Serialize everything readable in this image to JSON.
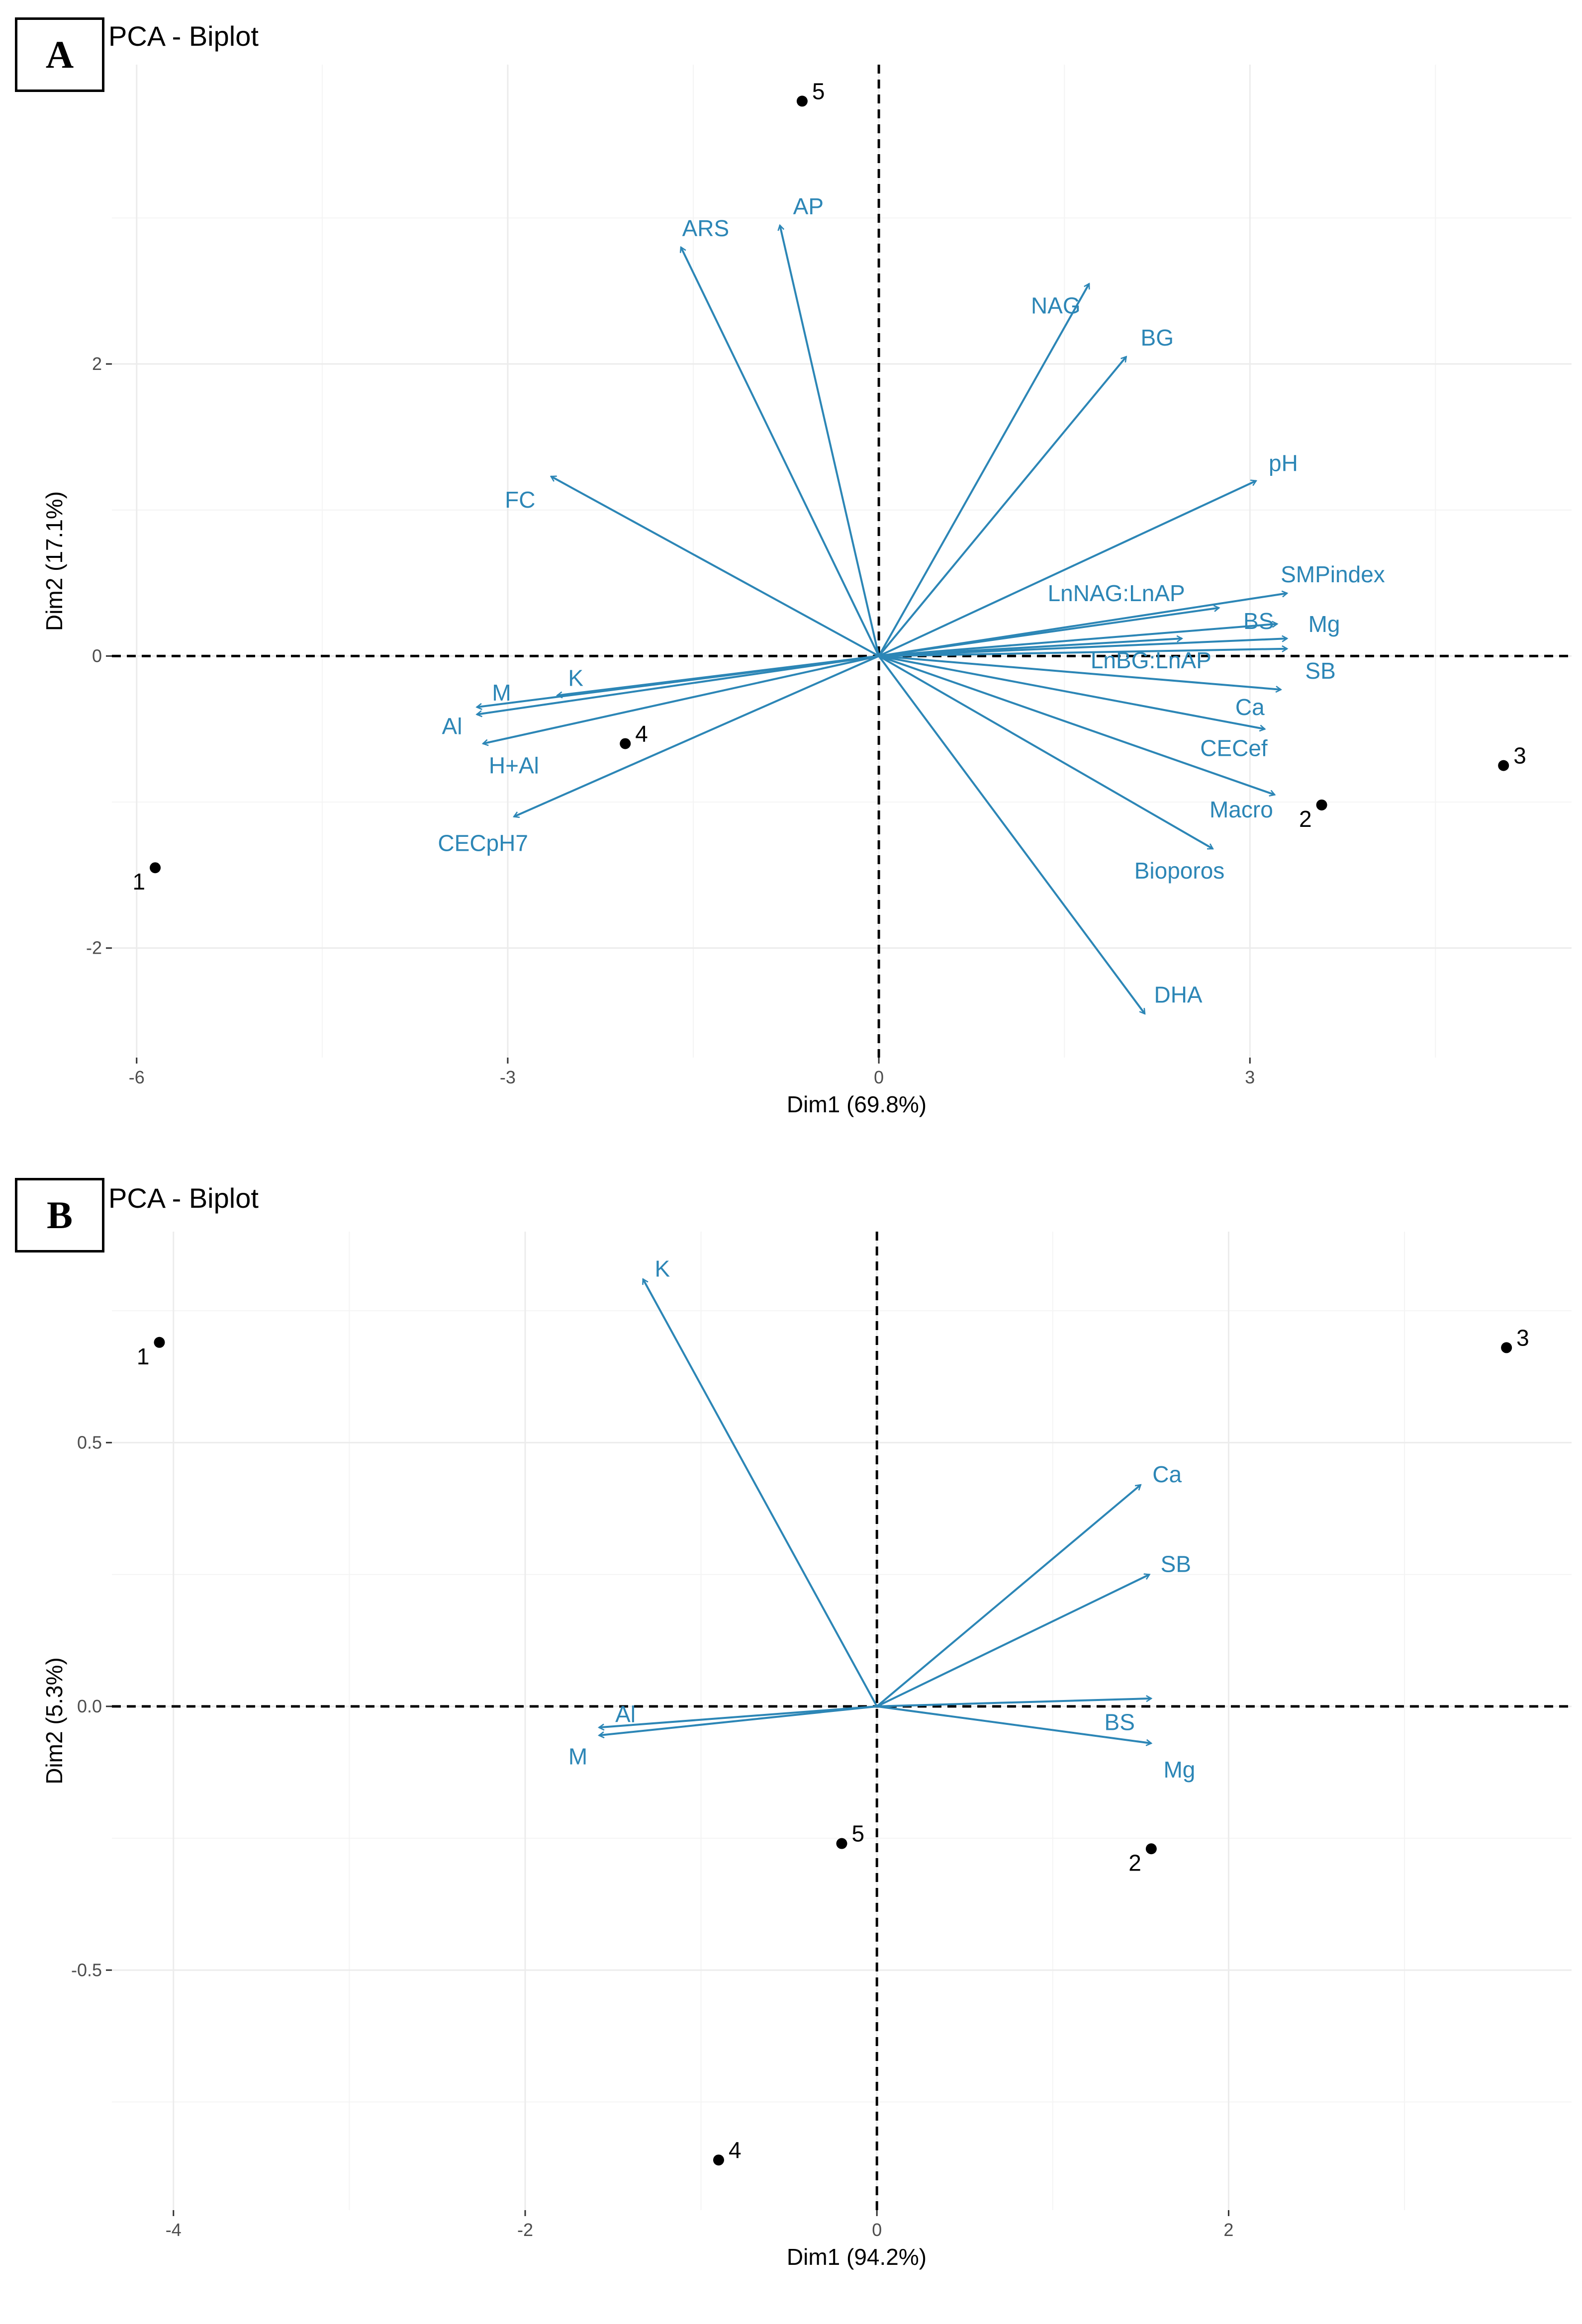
{
  "colors": {
    "arrow": "#2C86B6",
    "grid": "#ECECEC",
    "text": "#000000",
    "axis_text": "#4D4D4D"
  },
  "chart_data": [
    {
      "type": "scatter",
      "panel_label": "A",
      "title": "PCA - Biplot",
      "xlabel": "Dim1 (69.8%)",
      "ylabel": "Dim2 (17.1%)",
      "xlim": [
        -6.2,
        5.6
      ],
      "ylim": [
        -2.75,
        4.05
      ],
      "x_ticks": [
        -6,
        -3,
        0,
        3
      ],
      "x_tick_labels": [
        "-6",
        "-3",
        "0",
        "3"
      ],
      "y_ticks": [
        -2,
        0,
        2
      ],
      "y_tick_labels": [
        "-2",
        "0",
        "2"
      ],
      "minor_x": [
        -4.5,
        -1.5,
        1.5,
        4.5
      ],
      "minor_y": [
        -1,
        1,
        3
      ],
      "points": [
        {
          "label": "1",
          "x": -5.85,
          "y": -1.45,
          "pos": "bl"
        },
        {
          "label": "2",
          "x": 3.58,
          "y": -1.02,
          "pos": "bl"
        },
        {
          "label": "3",
          "x": 5.05,
          "y": -0.75,
          "pos": "tr"
        },
        {
          "label": "4",
          "x": -2.05,
          "y": -0.6,
          "pos": "tr"
        },
        {
          "label": "5",
          "x": -0.62,
          "y": 3.8,
          "pos": "tr"
        }
      ],
      "variables": [
        {
          "name": "ARS",
          "x": -1.6,
          "y": 2.8,
          "lx": -1.4,
          "ly": 2.93
        },
        {
          "name": "AP",
          "x": -0.8,
          "y": 2.95,
          "lx": -0.57,
          "ly": 3.08
        },
        {
          "name": "NAG",
          "x": 1.7,
          "y": 2.55,
          "lx": 1.43,
          "ly": 2.4
        },
        {
          "name": "BG",
          "x": 2.0,
          "y": 2.05,
          "lx": 2.25,
          "ly": 2.18
        },
        {
          "name": "pH",
          "x": 3.05,
          "y": 1.2,
          "lx": 3.27,
          "ly": 1.32
        },
        {
          "name": "FC",
          "x": -2.65,
          "y": 1.23,
          "lx": -2.9,
          "ly": 1.07
        },
        {
          "name": "SMPindex",
          "x": 3.3,
          "y": 0.43,
          "lx": 3.67,
          "ly": 0.56
        },
        {
          "name": "LnNAG:LnAP",
          "x": 2.75,
          "y": 0.33,
          "lx": 1.92,
          "ly": 0.43
        },
        {
          "name": "BS",
          "x": 3.22,
          "y": 0.22,
          "lx": 3.07,
          "ly": 0.24
        },
        {
          "name": "Mg",
          "x": 3.3,
          "y": 0.12,
          "lx": 3.6,
          "ly": 0.22
        },
        {
          "name": "LnBG:LnAP",
          "x": 2.45,
          "y": 0.12,
          "lx": 2.2,
          "ly": -0.03
        },
        {
          "name": "SB",
          "x": 3.3,
          "y": 0.05,
          "lx": 3.57,
          "ly": -0.1
        },
        {
          "name": "Ca",
          "x": 3.25,
          "y": -0.23,
          "lx": 3.0,
          "ly": -0.35
        },
        {
          "name": "CECef",
          "x": 3.12,
          "y": -0.5,
          "lx": 2.87,
          "ly": -0.63
        },
        {
          "name": "Macro",
          "x": 3.2,
          "y": -0.95,
          "lx": 2.93,
          "ly": -1.05
        },
        {
          "name": "Bioporos",
          "x": 2.7,
          "y": -1.32,
          "lx": 2.43,
          "ly": -1.47
        },
        {
          "name": "DHA",
          "x": 2.15,
          "y": -2.45,
          "lx": 2.42,
          "ly": -2.32
        },
        {
          "name": "K",
          "x": -2.6,
          "y": -0.27,
          "lx": -2.45,
          "ly": -0.15
        },
        {
          "name": "M",
          "x": -3.25,
          "y": -0.35,
          "lx": -3.05,
          "ly": -0.25
        },
        {
          "name": "Al",
          "x": -3.25,
          "y": -0.4,
          "lx": -3.45,
          "ly": -0.48
        },
        {
          "name": "H+Al",
          "x": -3.2,
          "y": -0.6,
          "lx": -2.95,
          "ly": -0.75
        },
        {
          "name": "CECpH7",
          "x": -2.95,
          "y": -1.1,
          "lx": -3.2,
          "ly": -1.28
        }
      ]
    },
    {
      "type": "scatter",
      "panel_label": "B",
      "title": "PCA - Biplot",
      "xlabel": "Dim1 (94.2%)",
      "ylabel": "Dim2 (5.3%)",
      "xlim": [
        -4.35,
        3.95
      ],
      "ylim": [
        -0.955,
        0.9
      ],
      "x_ticks": [
        -4,
        -2,
        0,
        2
      ],
      "x_tick_labels": [
        "-4",
        "-2",
        "0",
        "2"
      ],
      "y_ticks": [
        -0.5,
        0,
        0.5
      ],
      "y_tick_labels": [
        "-0.5",
        "0.0",
        "0.5"
      ],
      "minor_x": [
        -3,
        -1,
        1,
        3
      ],
      "minor_y": [
        -0.75,
        -0.25,
        0.25,
        0.75
      ],
      "points": [
        {
          "label": "1",
          "x": -4.08,
          "y": 0.69,
          "pos": "bl"
        },
        {
          "label": "2",
          "x": 1.56,
          "y": -0.27,
          "pos": "bl"
        },
        {
          "label": "3",
          "x": 3.58,
          "y": 0.68,
          "pos": "tr"
        },
        {
          "label": "4",
          "x": -0.9,
          "y": -0.86,
          "pos": "tr"
        },
        {
          "label": "5",
          "x": -0.2,
          "y": -0.26,
          "pos": "tr"
        }
      ],
      "variables": [
        {
          "name": "K",
          "x": -1.33,
          "y": 0.81,
          "lx": -1.22,
          "ly": 0.83
        },
        {
          "name": "Ca",
          "x": 1.5,
          "y": 0.42,
          "lx": 1.65,
          "ly": 0.44
        },
        {
          "name": "SB",
          "x": 1.55,
          "y": 0.25,
          "lx": 1.7,
          "ly": 0.27
        },
        {
          "name": "BS",
          "x": 1.56,
          "y": 0.015,
          "lx": 1.38,
          "ly": -0.03
        },
        {
          "name": "Mg",
          "x": 1.56,
          "y": -0.07,
          "lx": 1.72,
          "ly": -0.12
        },
        {
          "name": "Al",
          "x": -1.58,
          "y": -0.04,
          "lx": -1.43,
          "ly": -0.015
        },
        {
          "name": "M",
          "x": -1.58,
          "y": -0.055,
          "lx": -1.7,
          "ly": -0.095
        }
      ]
    }
  ]
}
